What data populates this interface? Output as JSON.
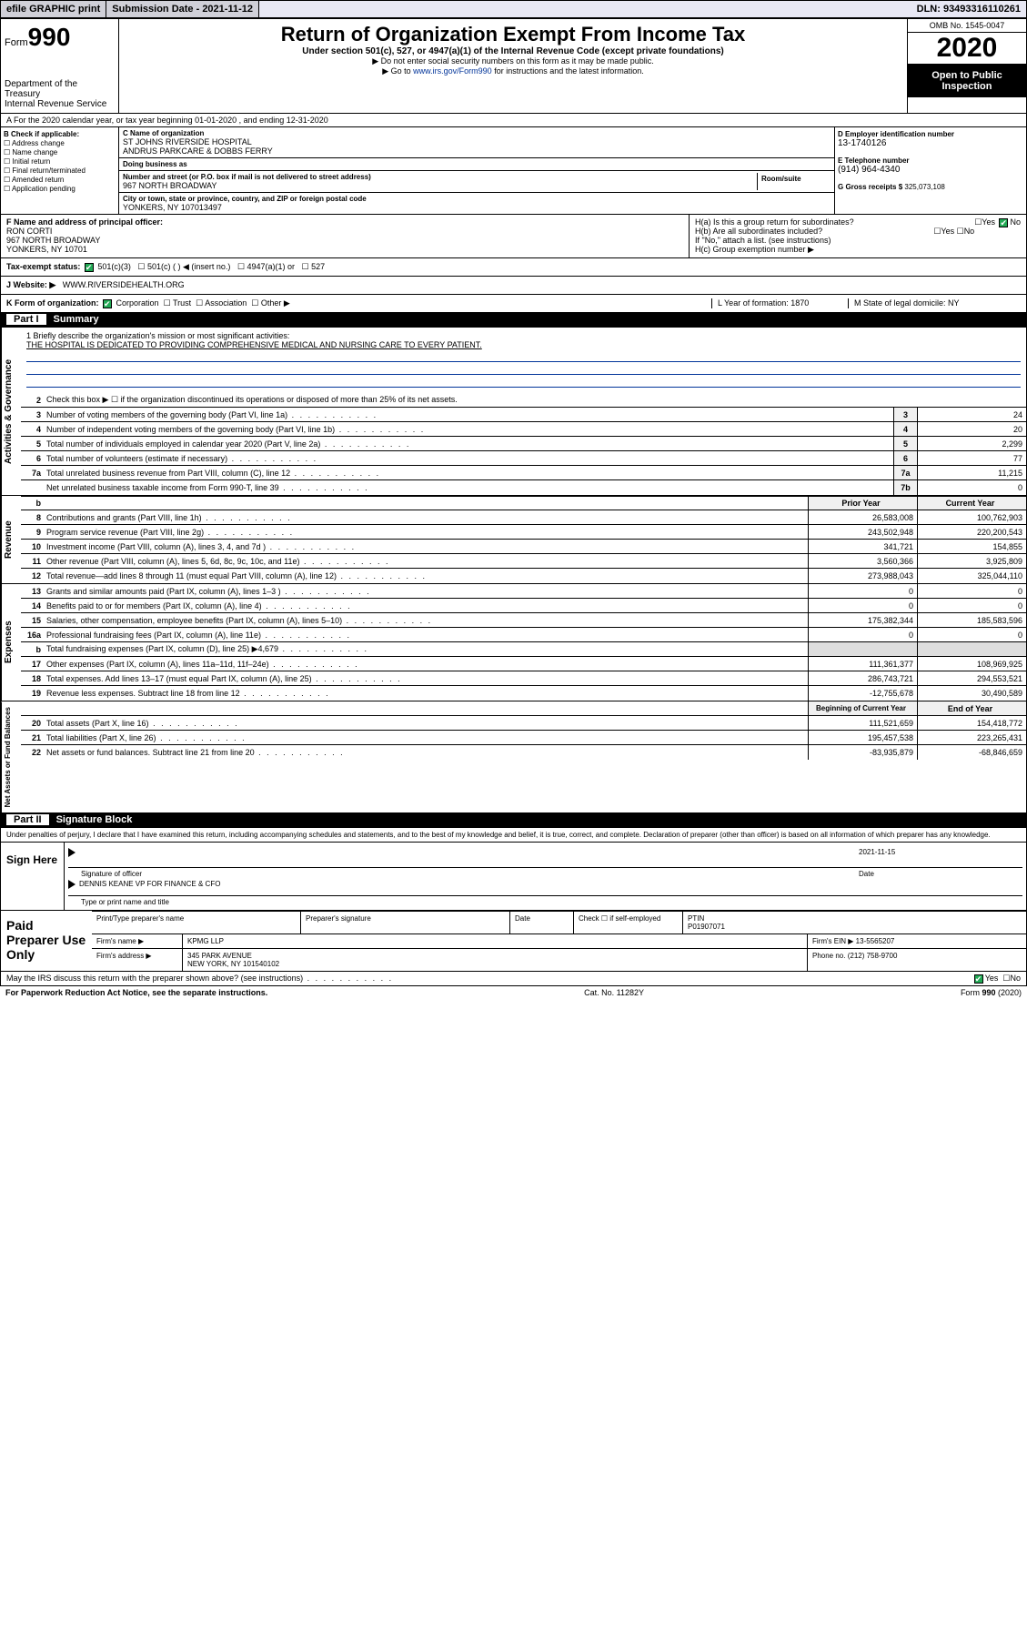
{
  "topbar": {
    "efile": "efile GRAPHIC print",
    "submission_label": "Submission Date - 2021-11-12",
    "dln": "DLN: 93493316110261"
  },
  "header": {
    "form_label": "Form",
    "form_num": "990",
    "dept": "Department of the Treasury\nInternal Revenue Service",
    "title": "Return of Organization Exempt From Income Tax",
    "subtitle": "Under section 501(c), 527, or 4947(a)(1) of the Internal Revenue Code (except private foundations)",
    "note1": "▶ Do not enter social security numbers on this form as it may be made public.",
    "note2_pre": "▶ Go to ",
    "note2_link": "www.irs.gov/Form990",
    "note2_post": " for instructions and the latest information.",
    "omb": "OMB No. 1545-0047",
    "year": "2020",
    "open": "Open to Public Inspection"
  },
  "rowA": "A For the 2020 calendar year, or tax year beginning 01-01-2020   , and ending 12-31-2020",
  "colB": {
    "title": "B Check if applicable:",
    "items": [
      "Address change",
      "Name change",
      "Initial return",
      "Final return/terminated",
      "Amended return",
      "Application pending"
    ]
  },
  "colC": {
    "name_hdr": "C Name of organization",
    "name": "ST JOHNS RIVERSIDE HOSPITAL\nANDRUS PARKCARE & DOBBS FERRY",
    "dba_hdr": "Doing business as",
    "dba": "",
    "addr_hdr": "Number and street (or P.O. box if mail is not delivered to street address)",
    "room_hdr": "Room/suite",
    "addr": "967 NORTH BROADWAY",
    "city_hdr": "City or town, state or province, country, and ZIP or foreign postal code",
    "city": "YONKERS, NY  107013497"
  },
  "colD": {
    "d_hdr": "D Employer identification number",
    "d_val": "13-1740126",
    "e_hdr": "E Telephone number",
    "e_val": "(914) 964-4340",
    "g_hdr": "G Gross receipts $",
    "g_val": "325,073,108"
  },
  "rowF": {
    "hdr": "F Name and address of principal officer:",
    "name": "RON CORTI",
    "addr1": "967 NORTH BROADWAY",
    "addr2": "YONKERS, NY  10701"
  },
  "rowH": {
    "ha": "H(a)  Is this a group return for subordinates?",
    "hb": "H(b)  Are all subordinates included?",
    "hb_note": "If \"No,\" attach a list. (see instructions)",
    "hc": "H(c)  Group exemption number ▶"
  },
  "rowI": {
    "label": "Tax-exempt status:",
    "opts": [
      "501(c)(3)",
      "501(c) (  ) ◀ (insert no.)",
      "4947(a)(1) or",
      "527"
    ]
  },
  "rowJ": {
    "label": "J   Website: ▶",
    "val": "WWW.RIVERSIDEHEALTH.ORG"
  },
  "rowK": {
    "k": "K Form of organization:",
    "opts": [
      "Corporation",
      "Trust",
      "Association",
      "Other ▶"
    ],
    "l": "L Year of formation: 1870",
    "m": "M State of legal domicile: NY"
  },
  "part1": {
    "num": "Part I",
    "title": "Summary"
  },
  "mission": {
    "line1": "1  Briefly describe the organization's mission or most significant activities:",
    "text": "THE HOSPITAL IS DEDICATED TO PROVIDING COMPREHENSIVE MEDICAL AND NURSING CARE TO EVERY PATIENT."
  },
  "summary": {
    "line2": "Check this box ▶ ☐  if the organization discontinued its operations or disposed of more than 25% of its net assets.",
    "lines_gov": [
      {
        "n": "3",
        "t": "Number of voting members of the governing body (Part VI, line 1a)",
        "b": "3",
        "v": "24"
      },
      {
        "n": "4",
        "t": "Number of independent voting members of the governing body (Part VI, line 1b)",
        "b": "4",
        "v": "20"
      },
      {
        "n": "5",
        "t": "Total number of individuals employed in calendar year 2020 (Part V, line 2a)",
        "b": "5",
        "v": "2,299"
      },
      {
        "n": "6",
        "t": "Total number of volunteers (estimate if necessary)",
        "b": "6",
        "v": "77"
      },
      {
        "n": "7a",
        "t": "Total unrelated business revenue from Part VIII, column (C), line 12",
        "b": "7a",
        "v": "11,215"
      },
      {
        "n": "",
        "t": "Net unrelated business taxable income from Form 990-T, line 39",
        "b": "7b",
        "v": "0"
      }
    ],
    "col_hdr_prior": "Prior Year",
    "col_hdr_curr": "Current Year",
    "lines_rev": [
      {
        "n": "8",
        "t": "Contributions and grants (Part VIII, line 1h)",
        "p": "26,583,008",
        "c": "100,762,903"
      },
      {
        "n": "9",
        "t": "Program service revenue (Part VIII, line 2g)",
        "p": "243,502,948",
        "c": "220,200,543"
      },
      {
        "n": "10",
        "t": "Investment income (Part VIII, column (A), lines 3, 4, and 7d )",
        "p": "341,721",
        "c": "154,855"
      },
      {
        "n": "11",
        "t": "Other revenue (Part VIII, column (A), lines 5, 6d, 8c, 9c, 10c, and 11e)",
        "p": "3,560,366",
        "c": "3,925,809"
      },
      {
        "n": "12",
        "t": "Total revenue—add lines 8 through 11 (must equal Part VIII, column (A), line 12)",
        "p": "273,988,043",
        "c": "325,044,110"
      }
    ],
    "lines_exp": [
      {
        "n": "13",
        "t": "Grants and similar amounts paid (Part IX, column (A), lines 1–3 )",
        "p": "0",
        "c": "0"
      },
      {
        "n": "14",
        "t": "Benefits paid to or for members (Part IX, column (A), line 4)",
        "p": "0",
        "c": "0"
      },
      {
        "n": "15",
        "t": "Salaries, other compensation, employee benefits (Part IX, column (A), lines 5–10)",
        "p": "175,382,344",
        "c": "185,583,596"
      },
      {
        "n": "16a",
        "t": "Professional fundraising fees (Part IX, column (A), line 11e)",
        "p": "0",
        "c": "0"
      },
      {
        "n": "b",
        "t": "Total fundraising expenses (Part IX, column (D), line 25) ▶4,679",
        "p": "",
        "c": ""
      },
      {
        "n": "17",
        "t": "Other expenses (Part IX, column (A), lines 11a–11d, 11f–24e)",
        "p": "111,361,377",
        "c": "108,969,925"
      },
      {
        "n": "18",
        "t": "Total expenses. Add lines 13–17 (must equal Part IX, column (A), line 25)",
        "p": "286,743,721",
        "c": "294,553,521"
      },
      {
        "n": "19",
        "t": "Revenue less expenses. Subtract line 18 from line 12",
        "p": "-12,755,678",
        "c": "30,490,589"
      }
    ],
    "col_hdr_beg": "Beginning of Current Year",
    "col_hdr_end": "End of Year",
    "lines_net": [
      {
        "n": "20",
        "t": "Total assets (Part X, line 16)",
        "p": "111,521,659",
        "c": "154,418,772"
      },
      {
        "n": "21",
        "t": "Total liabilities (Part X, line 26)",
        "p": "195,457,538",
        "c": "223,265,431"
      },
      {
        "n": "22",
        "t": "Net assets or fund balances. Subtract line 21 from line 20",
        "p": "-83,935,879",
        "c": "-68,846,659"
      }
    ]
  },
  "side_labels": {
    "gov": "Activities & Governance",
    "rev": "Revenue",
    "exp": "Expenses",
    "net": "Net Assets or Fund Balances"
  },
  "part2": {
    "num": "Part II",
    "title": "Signature Block"
  },
  "perjury": "Under penalties of perjury, I declare that I have examined this return, including accompanying schedules and statements, and to the best of my knowledge and belief, it is true, correct, and complete. Declaration of preparer (other than officer) is based on all information of which preparer has any knowledge.",
  "sign": {
    "label": "Sign Here",
    "sig_officer": "Signature of officer",
    "date_lbl": "Date",
    "date": "2021-11-15",
    "name": "DENNIS KEANE  VP FOR FINANCE & CFO",
    "name_lbl": "Type or print name and title"
  },
  "prep": {
    "label": "Paid Preparer Use Only",
    "r1": [
      "Print/Type preparer's name",
      "Preparer's signature",
      "Date",
      "Check ☐ if self-employed",
      "PTIN\nP01907071"
    ],
    "r2_l": "Firm's name   ▶",
    "r2_v": "KPMG LLP",
    "r2_r": "Firm's EIN ▶ 13-5565207",
    "r3_l": "Firm's address ▶",
    "r3_v": "345 PARK AVENUE\nNEW YORK, NY  101540102",
    "r3_r": "Phone no. (212) 758-9700"
  },
  "footer": {
    "discuss": "May the IRS discuss this return with the preparer shown above? (see instructions)",
    "pra": "For Paperwork Reduction Act Notice, see the separate instructions.",
    "cat": "Cat. No. 11282Y",
    "form": "Form 990 (2020)"
  },
  "yesno": {
    "yes": "Yes",
    "no": "No"
  }
}
